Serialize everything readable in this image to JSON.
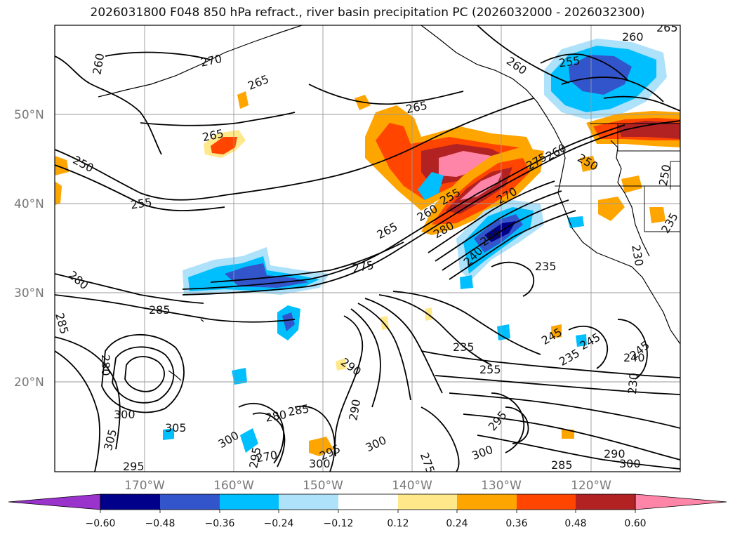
{
  "title": "2026031800 F048 850 hPa refract., river basin precipitation PC (2026032000 - 2026032300)",
  "lat_labels": [
    "50°N",
    "40°N",
    "30°N",
    "20°N"
  ],
  "lon_labels": [
    "170°W",
    "160°W",
    "150°W",
    "140°W",
    "130°W",
    "120°W"
  ],
  "colorbar": {
    "tick_labels": [
      "−0.60",
      "−0.48",
      "−0.36",
      "−0.24",
      "−0.12",
      "0.12",
      "0.24",
      "0.36",
      "0.48",
      "0.60"
    ],
    "colors": [
      "#9933cc",
      "#00008b",
      "#3355cc",
      "#00bfff",
      "#aee1fa",
      "#ffffff",
      "#ffe88a",
      "#ffa500",
      "#ff4500",
      "#b22222",
      "#ff85a8"
    ]
  },
  "contour_labels": [
    {
      "id": "c1",
      "text": "260"
    },
    {
      "id": "c2",
      "text": "270"
    },
    {
      "id": "c3",
      "text": "265"
    },
    {
      "id": "c4",
      "text": "265"
    },
    {
      "id": "c5",
      "text": "260"
    },
    {
      "id": "c6",
      "text": "255"
    },
    {
      "id": "c7",
      "text": "260"
    },
    {
      "id": "c8",
      "text": "265"
    },
    {
      "id": "c9",
      "text": "250"
    },
    {
      "id": "c10",
      "text": "255"
    },
    {
      "id": "c11",
      "text": "265"
    },
    {
      "id": "c12",
      "text": "260"
    },
    {
      "id": "c13",
      "text": "255"
    },
    {
      "id": "c14",
      "text": "280"
    },
    {
      "id": "c15",
      "text": "275"
    },
    {
      "id": "c16",
      "text": "270"
    },
    {
      "id": "c17",
      "text": "245"
    },
    {
      "id": "c18",
      "text": "240"
    },
    {
      "id": "c19",
      "text": "235"
    },
    {
      "id": "c20",
      "text": "275"
    },
    {
      "id": "c21",
      "text": "260"
    },
    {
      "id": "c22",
      "text": "250"
    },
    {
      "id": "c23",
      "text": "250"
    },
    {
      "id": "c24",
      "text": "235"
    },
    {
      "id": "c25",
      "text": "230"
    },
    {
      "id": "c26",
      "text": "280"
    },
    {
      "id": "c27",
      "text": "285"
    },
    {
      "id": "c28",
      "text": "285"
    },
    {
      "id": "c29",
      "text": "280"
    },
    {
      "id": "c30",
      "text": "300"
    },
    {
      "id": "c31",
      "text": "305"
    },
    {
      "id": "c32",
      "text": "305"
    },
    {
      "id": "c33",
      "text": "295"
    },
    {
      "id": "c34",
      "text": "290"
    },
    {
      "id": "c35",
      "text": "235"
    },
    {
      "id": "c36",
      "text": "255"
    },
    {
      "id": "c37",
      "text": "245"
    },
    {
      "id": "c38",
      "text": "235"
    },
    {
      "id": "c39",
      "text": "245"
    },
    {
      "id": "c40",
      "text": "245"
    },
    {
      "id": "c41",
      "text": "240"
    },
    {
      "id": "c42",
      "text": "230"
    },
    {
      "id": "c43",
      "text": "290"
    },
    {
      "id": "c44",
      "text": "280"
    },
    {
      "id": "c45",
      "text": "285"
    },
    {
      "id": "c46",
      "text": "300"
    },
    {
      "id": "c47",
      "text": "270"
    },
    {
      "id": "c48",
      "text": "300"
    },
    {
      "id": "c49",
      "text": "295"
    },
    {
      "id": "c50",
      "text": "300"
    },
    {
      "id": "c51",
      "text": "295"
    },
    {
      "id": "c52",
      "text": "275"
    },
    {
      "id": "c53",
      "text": "300"
    },
    {
      "id": "c54",
      "text": "285"
    },
    {
      "id": "c55",
      "text": "290"
    },
    {
      "id": "c56",
      "text": "300"
    },
    {
      "id": "c57",
      "text": "295"
    },
    {
      "id": "c58",
      "text": "265"
    }
  ]
}
